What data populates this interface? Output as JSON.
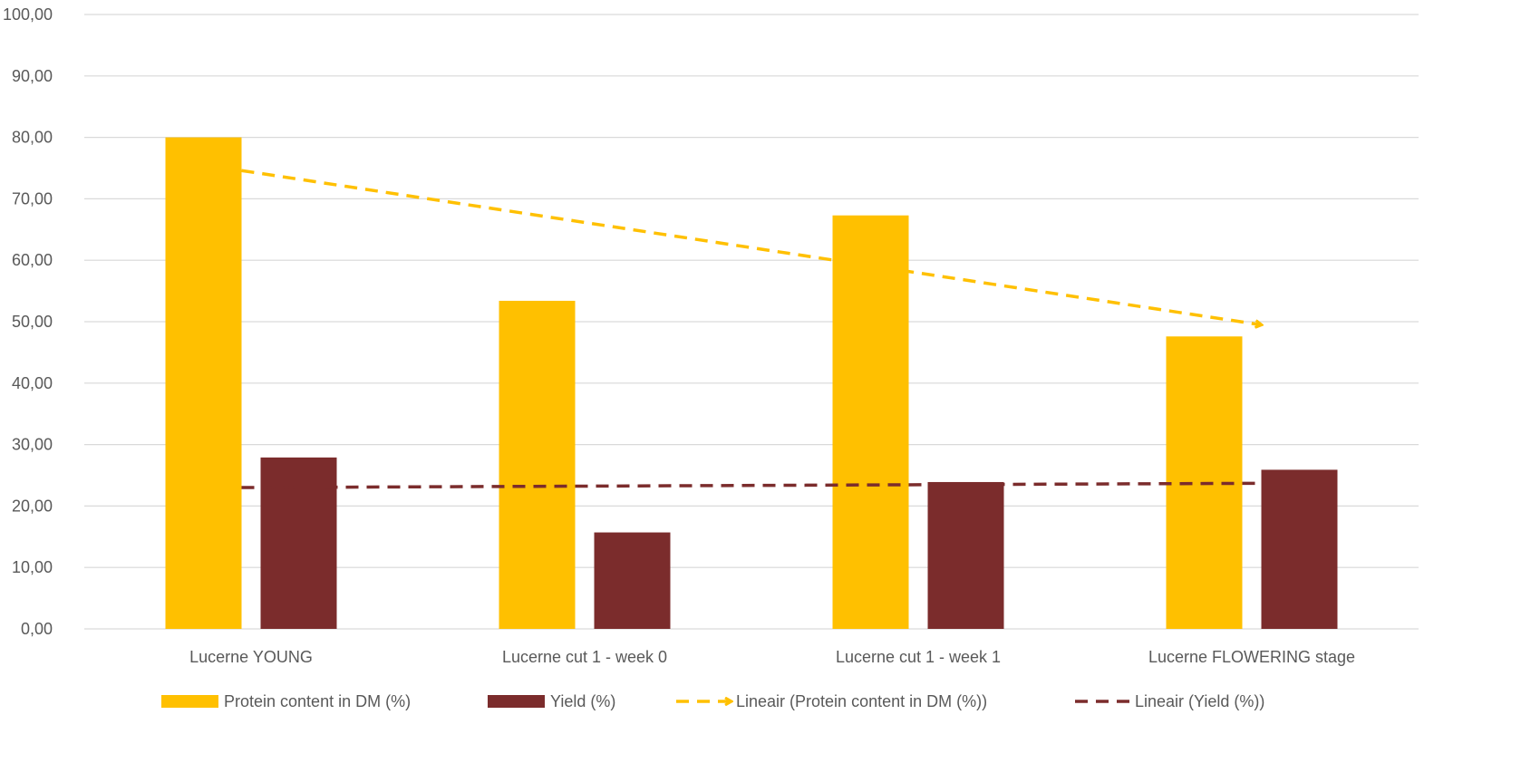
{
  "chart_data": {
    "type": "bar",
    "categories": [
      "Lucerne YOUNG",
      "Lucerne cut 1 - week 0",
      "Lucerne cut 1 - week 1",
      "Lucerne FLOWERING stage"
    ],
    "series": [
      {
        "name": "Protein content in DM (%)",
        "values": [
          80.0,
          53.4,
          67.3,
          47.6
        ],
        "color": "#FFC000"
      },
      {
        "name": "Yield  (%)",
        "values": [
          27.9,
          15.7,
          23.9,
          25.9
        ],
        "color": "#7B2C2C"
      }
    ],
    "trendlines": [
      {
        "name": "Lineair (Protein content in DM (%))",
        "series": "Protein content in DM (%)",
        "type": "linear",
        "start": 74.6,
        "end": 49.5,
        "style": "dashed",
        "arrow_end": true,
        "color": "#FFC000"
      },
      {
        "name": "Lineair (Yield  (%))",
        "series": "Yield  (%)",
        "type": "linear",
        "start": 23.0,
        "end": 23.7,
        "style": "dashed",
        "arrow_end": false,
        "color": "#7B2C2C"
      }
    ],
    "y_ticks": [
      "0,00",
      "10,00",
      "20,00",
      "30,00",
      "40,00",
      "50,00",
      "60,00",
      "70,00",
      "80,00",
      "90,00",
      "100,00"
    ],
    "ylim": [
      0,
      100
    ],
    "grid": true,
    "legend_position": "bottom",
    "title": "",
    "xlabel": "",
    "ylabel": ""
  }
}
